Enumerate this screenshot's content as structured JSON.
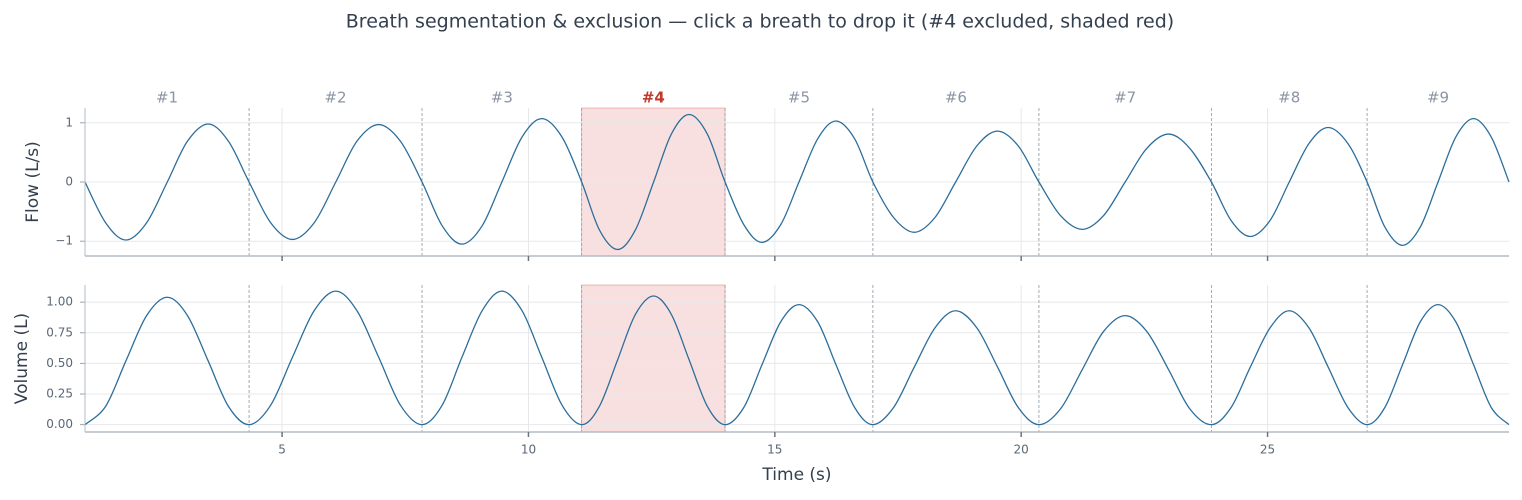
{
  "title": "Breath segmentation & exclusion — click a breath to drop it (#4 excluded, shaded red)",
  "chart_data": {
    "type": "line",
    "xlabel": "Time (s)",
    "xlim": [
      1.0,
      29.9
    ],
    "xticks": [
      5,
      10,
      15,
      20,
      25
    ],
    "grid": true,
    "x": [
      1.0,
      1.42,
      1.83,
      2.25,
      2.67,
      3.08,
      3.5,
      3.91,
      4.33,
      4.77,
      5.21,
      5.65,
      6.09,
      6.52,
      6.96,
      7.4,
      7.84,
      8.25,
      8.65,
      9.06,
      9.46,
      9.87,
      10.27,
      10.68,
      11.08,
      11.44,
      11.81,
      12.17,
      12.54,
      12.9,
      13.26,
      13.63,
      13.99,
      14.37,
      14.74,
      15.12,
      15.49,
      15.87,
      16.24,
      16.62,
      16.99,
      17.41,
      17.83,
      18.25,
      18.67,
      19.1,
      19.52,
      19.94,
      20.36,
      20.8,
      21.24,
      21.67,
      22.11,
      22.55,
      22.99,
      23.42,
      23.86,
      24.26,
      24.65,
      25.05,
      25.44,
      25.84,
      26.23,
      26.63,
      27.02,
      27.38,
      27.74,
      28.1,
      28.46,
      28.82,
      29.18,
      29.54,
      29.9
    ],
    "panels": [
      {
        "ylabel": "Flow (L/s)",
        "color": "#2c6e9b",
        "ylim": [
          -1.25,
          1.25
        ],
        "yticks": [
          {
            "value": -1,
            "label": "−1"
          },
          0,
          1
        ],
        "values": [
          0,
          -0.69,
          -0.98,
          -0.69,
          0,
          0.69,
          0.98,
          0.69,
          0,
          -0.69,
          -0.97,
          -0.69,
          0,
          0.69,
          0.97,
          0.69,
          0,
          -0.74,
          -1.05,
          -0.74,
          0,
          0.76,
          1.07,
          0.76,
          0,
          -0.81,
          -1.14,
          -0.81,
          0,
          0.81,
          1.14,
          0.81,
          0,
          -0.72,
          -1.02,
          -0.72,
          0,
          0.73,
          1.03,
          0.73,
          0,
          -0.6,
          -0.85,
          -0.6,
          0,
          0.61,
          0.86,
          0.61,
          0,
          -0.57,
          -0.8,
          -0.57,
          0,
          0.57,
          0.81,
          0.57,
          0,
          -0.65,
          -0.92,
          -0.65,
          0,
          0.65,
          0.92,
          0.65,
          0,
          -0.76,
          -1.07,
          -0.76,
          0,
          0.76,
          1.07,
          0.76,
          0
        ]
      },
      {
        "ylabel": "Volume (L)",
        "color": "#2c6e9b",
        "ylim": [
          -0.06,
          1.14
        ],
        "yticks": [
          {
            "value": 0,
            "label": "0.00"
          },
          {
            "value": 0.25,
            "label": "0.25"
          },
          {
            "value": 0.5,
            "label": "0.50"
          },
          {
            "value": 0.75,
            "label": "0.75"
          },
          {
            "value": 1,
            "label": "1.00"
          }
        ],
        "values": [
          0,
          0.15,
          0.52,
          0.89,
          1.04,
          0.89,
          0.52,
          0.15,
          0,
          0.16,
          0.55,
          0.93,
          1.09,
          0.93,
          0.55,
          0.16,
          0,
          0.16,
          0.55,
          0.93,
          1.09,
          0.93,
          0.55,
          0.16,
          0,
          0.15,
          0.53,
          0.9,
          1.05,
          0.9,
          0.53,
          0.15,
          0,
          0.14,
          0.49,
          0.84,
          0.98,
          0.84,
          0.49,
          0.14,
          0,
          0.14,
          0.47,
          0.79,
          0.93,
          0.79,
          0.47,
          0.14,
          0,
          0.13,
          0.45,
          0.76,
          0.89,
          0.76,
          0.45,
          0.13,
          0,
          0.14,
          0.47,
          0.79,
          0.93,
          0.79,
          0.47,
          0.14,
          0,
          0.14,
          0.49,
          0.84,
          0.98,
          0.84,
          0.49,
          0.14,
          0
        ]
      }
    ],
    "breaths": {
      "labels": [
        "#1",
        "#2",
        "#3",
        "#4",
        "#5",
        "#6",
        "#7",
        "#8",
        "#9"
      ],
      "boundaries": [
        4.33,
        7.84,
        11.08,
        13.99,
        16.99,
        20.36,
        23.86,
        27.02
      ],
      "excluded": [
        false,
        false,
        false,
        true,
        false,
        false,
        false,
        false,
        false
      ],
      "excluded_color": "#c0392b",
      "shade_color": "#f9e0e0"
    }
  }
}
